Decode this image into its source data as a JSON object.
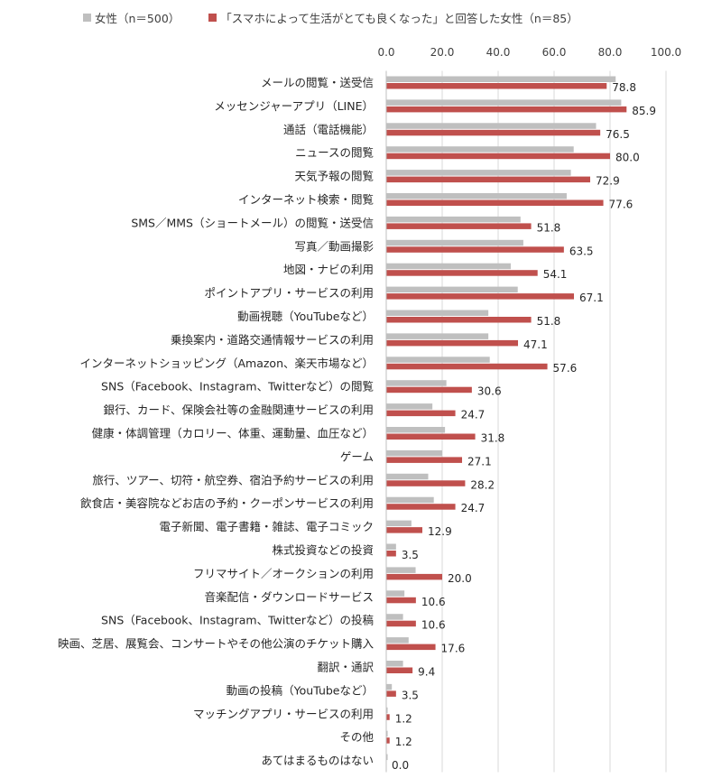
{
  "chart_data": {
    "type": "bar",
    "orientation": "horizontal",
    "xlim": [
      0,
      100
    ],
    "xticks": [
      "0.0",
      "20.0",
      "40.0",
      "60.0",
      "80.0",
      "100.0"
    ],
    "grid": true,
    "legend_position": "top",
    "categories": [
      "メールの閲覧・送受信",
      "メッセンジャーアプリ（LINE）",
      "通話（電話機能）",
      "ニュースの閲覧",
      "天気予報の閲覧",
      "インターネット検索・閲覧",
      "SMS／MMS（ショートメール）の閲覧・送受信",
      "写真／動画撮影",
      "地図・ナビの利用",
      "ポイントアプリ・サービスの利用",
      "動画視聴（YouTubeなど）",
      "乗換案内・道路交通情報サービスの利用",
      "インターネットショッピング（Amazon、楽天市場など）",
      "SNS（Facebook、Instagram、Twitterなど）の閲覧",
      "銀行、カード、保険会社等の金融関連サービスの利用",
      "健康・体調管理（カロリー、体重、運動量、血圧など）",
      "ゲーム",
      "旅行、ツアー、切符・航空券、宿泊予約サービスの利用",
      "飲食店・美容院などお店の予約・クーポンサービスの利用",
      "電子新聞、電子書籍・雑誌、電子コミック",
      "株式投資などの投資",
      "フリマサイト／オークションの利用",
      "音楽配信・ダウンロードサービス",
      "SNS（Facebook、Instagram、Twitterなど）の投稿",
      "映画、芝居、展覧会、コンサートやその他公演のチケット購入",
      "翻訳・通訳",
      "動画の投稿（YouTubeなど）",
      "マッチングアプリ・サービスの利用",
      "その他",
      "あてはまるものはない"
    ],
    "series": [
      {
        "name": "女性（n＝500）",
        "color": "#bfbfbf",
        "values": [
          82.0,
          84.0,
          75.0,
          67.0,
          66.0,
          64.5,
          48.0,
          49.0,
          44.5,
          47.0,
          36.5,
          36.5,
          37.0,
          21.5,
          16.5,
          21.0,
          20.0,
          15.0,
          17.0,
          9.0,
          3.5,
          10.5,
          6.5,
          6.0,
          8.0,
          6.0,
          2.0,
          0.5,
          0.5,
          0.5
        ]
      },
      {
        "name": "「スマホによって生活がとても良くなった」と回答した女性（n＝85）",
        "color": "#c0504d",
        "values": [
          78.8,
          85.9,
          76.5,
          80.0,
          72.9,
          77.6,
          51.8,
          63.5,
          54.1,
          67.1,
          51.8,
          47.1,
          57.6,
          30.6,
          24.7,
          31.8,
          27.1,
          28.2,
          24.7,
          12.9,
          3.5,
          20.0,
          10.6,
          10.6,
          17.6,
          9.4,
          3.5,
          1.2,
          1.2,
          0.0
        ]
      }
    ],
    "value_labels": [
      "78.8",
      "85.9",
      "76.5",
      "80.0",
      "72.9",
      "77.6",
      "51.8",
      "63.5",
      "54.1",
      "67.1",
      "51.8",
      "47.1",
      "57.6",
      "30.6",
      "24.7",
      "31.8",
      "27.1",
      "28.2",
      "24.7",
      "12.9",
      "3.5",
      "20.0",
      "10.6",
      "10.6",
      "17.6",
      "9.4",
      "3.5",
      "1.2",
      "1.2",
      "0.0"
    ]
  }
}
